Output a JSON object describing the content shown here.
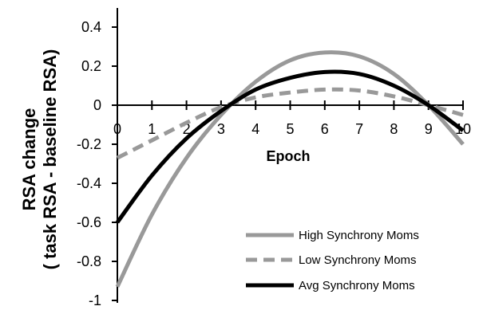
{
  "chart_data": {
    "type": "line",
    "xlabel": "Epoch",
    "ylabel_line1": "RSA change",
    "ylabel_line2": "( task RSA - baseline RSA)",
    "x": [
      0,
      1,
      2,
      3,
      4,
      5,
      6,
      7,
      8,
      9,
      10
    ],
    "x_tick_labels": [
      "0",
      "1",
      "2",
      "3",
      "4",
      "5",
      "6",
      "7",
      "8",
      "9",
      "10"
    ],
    "y_ticks": [
      0.4,
      0.2,
      0,
      -0.2,
      -0.4,
      -0.6,
      -0.8,
      -1
    ],
    "y_tick_labels": [
      "0.4",
      "0.2",
      "0",
      "-0.2",
      "-0.4",
      "-0.6",
      "-0.8",
      "-1"
    ],
    "ylim": [
      -1,
      0.5
    ],
    "xlim": [
      0,
      10
    ],
    "grid": false,
    "legend_position": "bottom-right",
    "series": [
      {
        "name": "High Synchrony Moms",
        "color": "#999999",
        "dash": "solid",
        "values": [
          -0.93,
          -0.56,
          -0.27,
          -0.05,
          0.12,
          0.23,
          0.27,
          0.25,
          0.16,
          0.0,
          -0.2
        ]
      },
      {
        "name": "Low Synchrony Moms",
        "color": "#999999",
        "dash": "dashed",
        "values": [
          -0.27,
          -0.18,
          -0.09,
          -0.01,
          0.04,
          0.065,
          0.08,
          0.075,
          0.045,
          0.0,
          -0.05
        ]
      },
      {
        "name": "Avg Synchrony Moms",
        "color": "#000000",
        "dash": "solid",
        "values": [
          -0.6,
          -0.36,
          -0.17,
          -0.03,
          0.08,
          0.14,
          0.17,
          0.16,
          0.1,
          0.0,
          -0.13
        ]
      }
    ]
  }
}
